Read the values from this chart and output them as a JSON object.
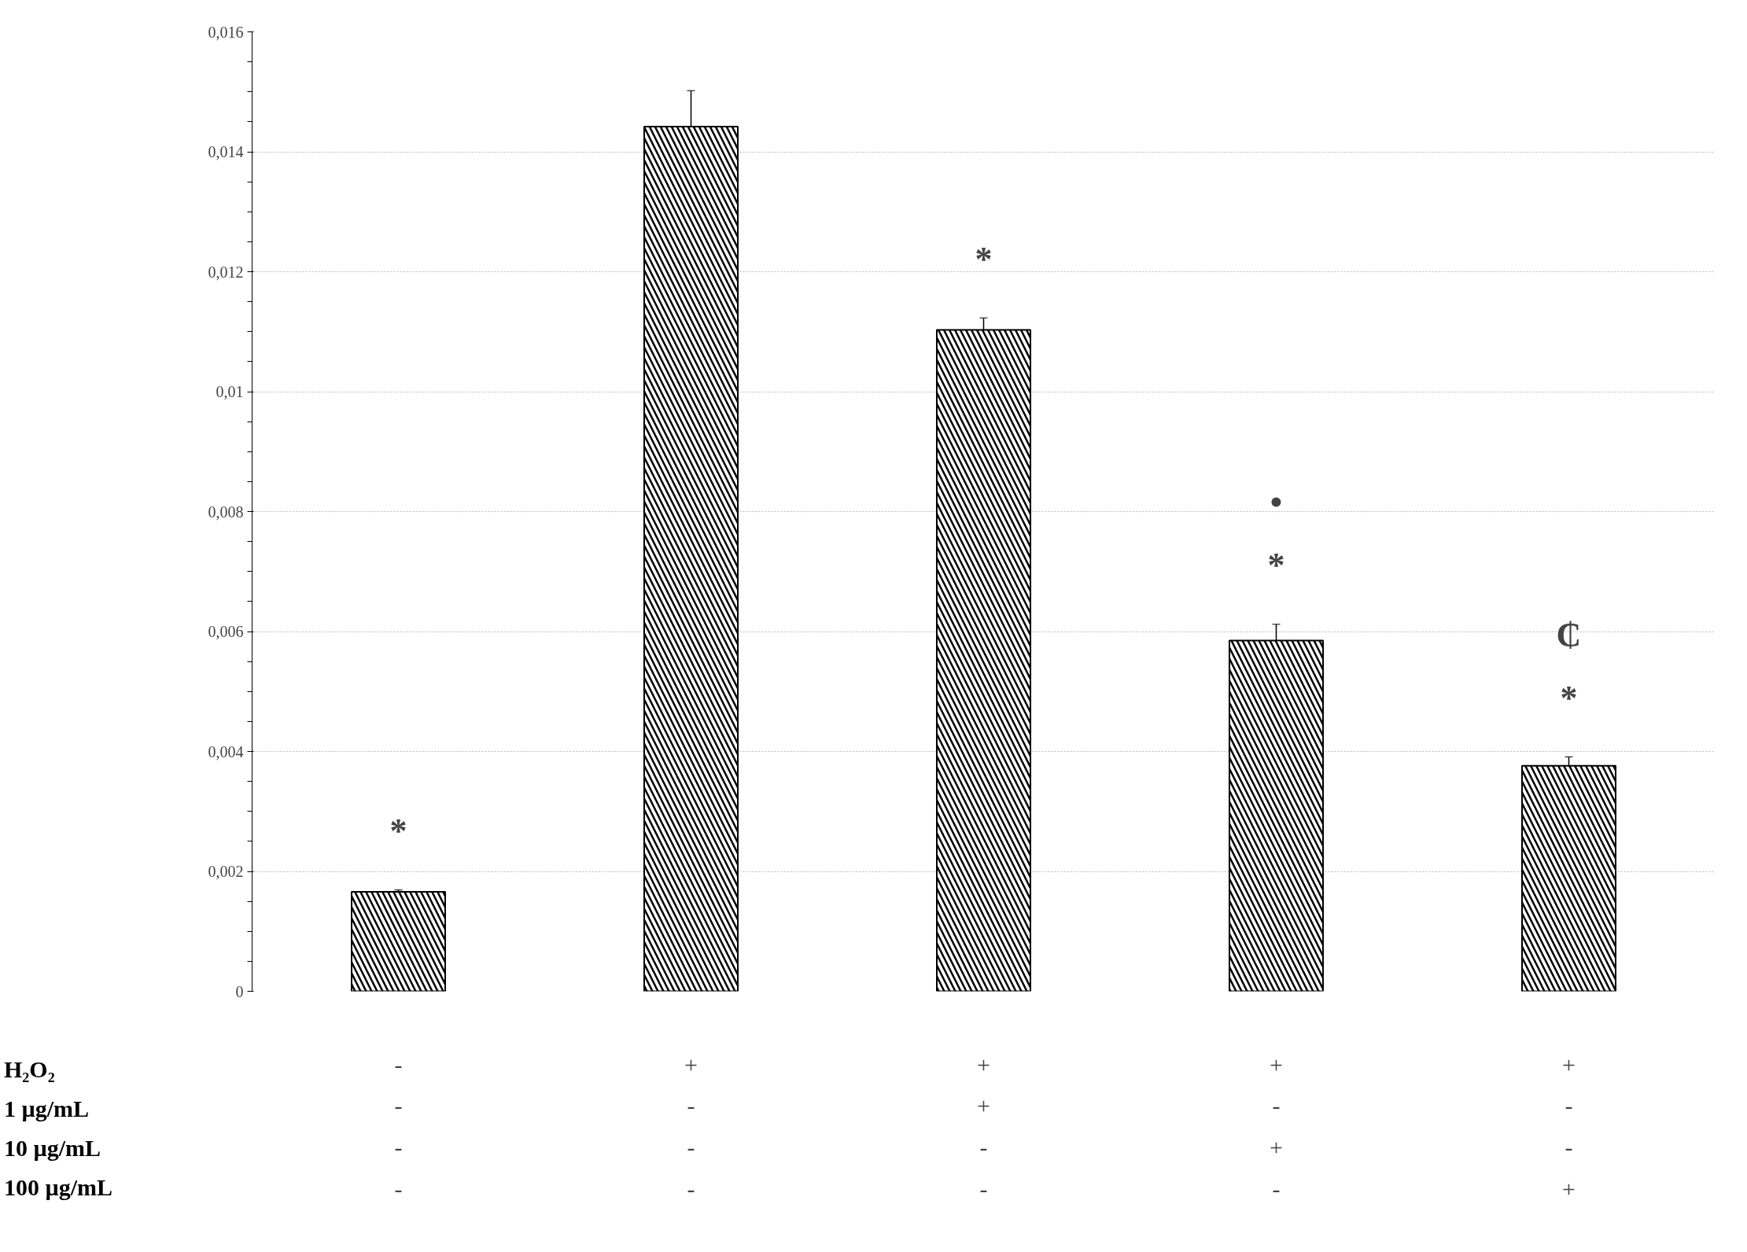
{
  "chart_data": {
    "type": "bar",
    "categories": [
      "-\n-\n-\n-",
      "+\n-\n-\n-",
      "+\n+\n-\n-",
      "+\n-\n+\n-",
      "+\n-\n-\n+"
    ],
    "values": [
      0.00166,
      0.01442,
      0.01103,
      0.00585,
      0.00376
    ],
    "errors": [
      3e-05,
      0.0006,
      0.0002,
      0.00027,
      0.00015
    ],
    "color": "#000000",
    "ylim": [
      0,
      0.016
    ],
    "yticks": [
      0,
      {
        "value": 0.002,
        "label": "0,002"
      },
      {
        "value": 0.004,
        "label": "0,004"
      },
      {
        "value": 0.006,
        "label": "0,006"
      },
      {
        "value": 0.008,
        "label": "0,008"
      },
      {
        "value": 0.01,
        "label": "0,01"
      },
      {
        "value": 0.012,
        "label": "0,012"
      },
      {
        "value": 0.014,
        "label": "0,014"
      },
      {
        "value": 0.016,
        "label": "0,016"
      }
    ],
    "grid": "y",
    "annotations": [
      "*",
      "*",
      "*",
      "•",
      "*",
      "₵",
      "H₂O₂",
      "1 µg/mL",
      "10 µg/mL",
      "100 µg/mL"
    ]
  }
}
